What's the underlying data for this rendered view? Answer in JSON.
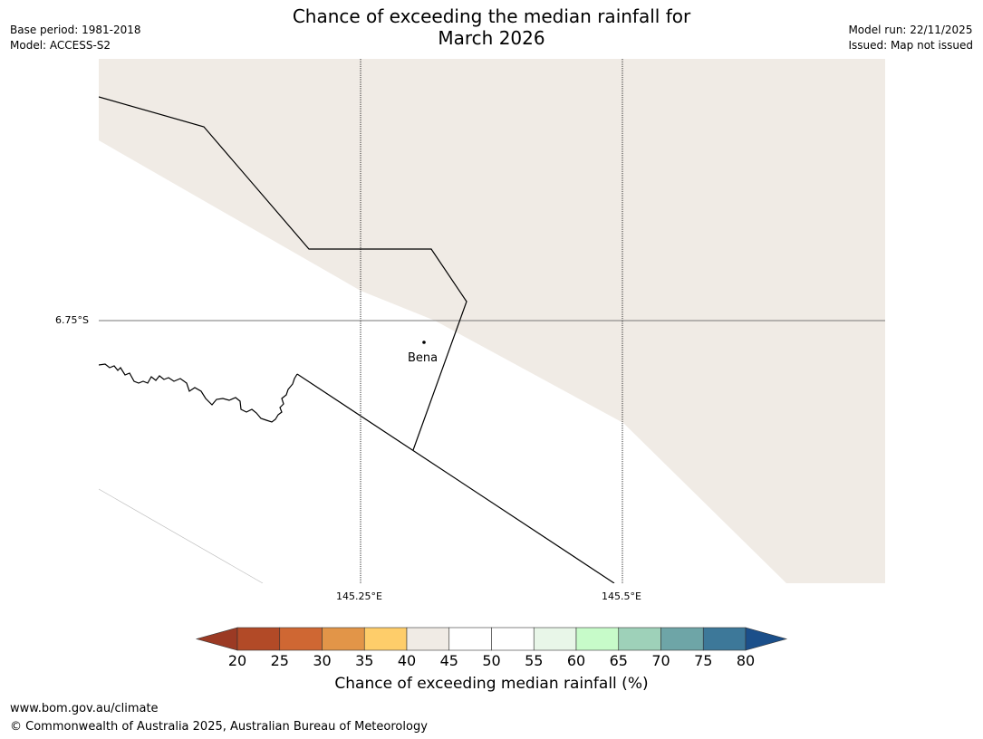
{
  "title": {
    "line1": "Chance of exceeding the median rainfall for",
    "line2": "March 2026"
  },
  "meta_left": {
    "base_period": "Base period: 1981-2018",
    "model": "Model: ACCESS-S2"
  },
  "meta_right": {
    "model_run": "Model run: 22/11/2025",
    "issued": "Issued: Map not issued"
  },
  "map": {
    "lat_label": "6.75°S",
    "lon_labels": [
      "145.25°E",
      "145.5°E"
    ],
    "place": "Bena",
    "colors": {
      "shaded": "#f0ebe5",
      "unshaded": "#ffffff"
    }
  },
  "colorbar": {
    "ticks": [
      "20",
      "25",
      "30",
      "35",
      "40",
      "45",
      "50",
      "55",
      "60",
      "65",
      "70",
      "75",
      "80"
    ],
    "colors": [
      "#9b3a24",
      "#b24a27",
      "#cf6733",
      "#e29548",
      "#fecd6a",
      "#f0ebe5",
      "#ffffff",
      "#ffffff",
      "#e8f6e8",
      "#c7fbc9",
      "#9ed1b9",
      "#6ea5a7",
      "#3d7899",
      "#1b4f8a"
    ],
    "label": "Chance of exceeding median rainfall (%)"
  },
  "footer": {
    "url": "www.bom.gov.au/climate",
    "copyright": "© Commonwealth of Australia 2025, Australian Bureau of Meteorology"
  }
}
